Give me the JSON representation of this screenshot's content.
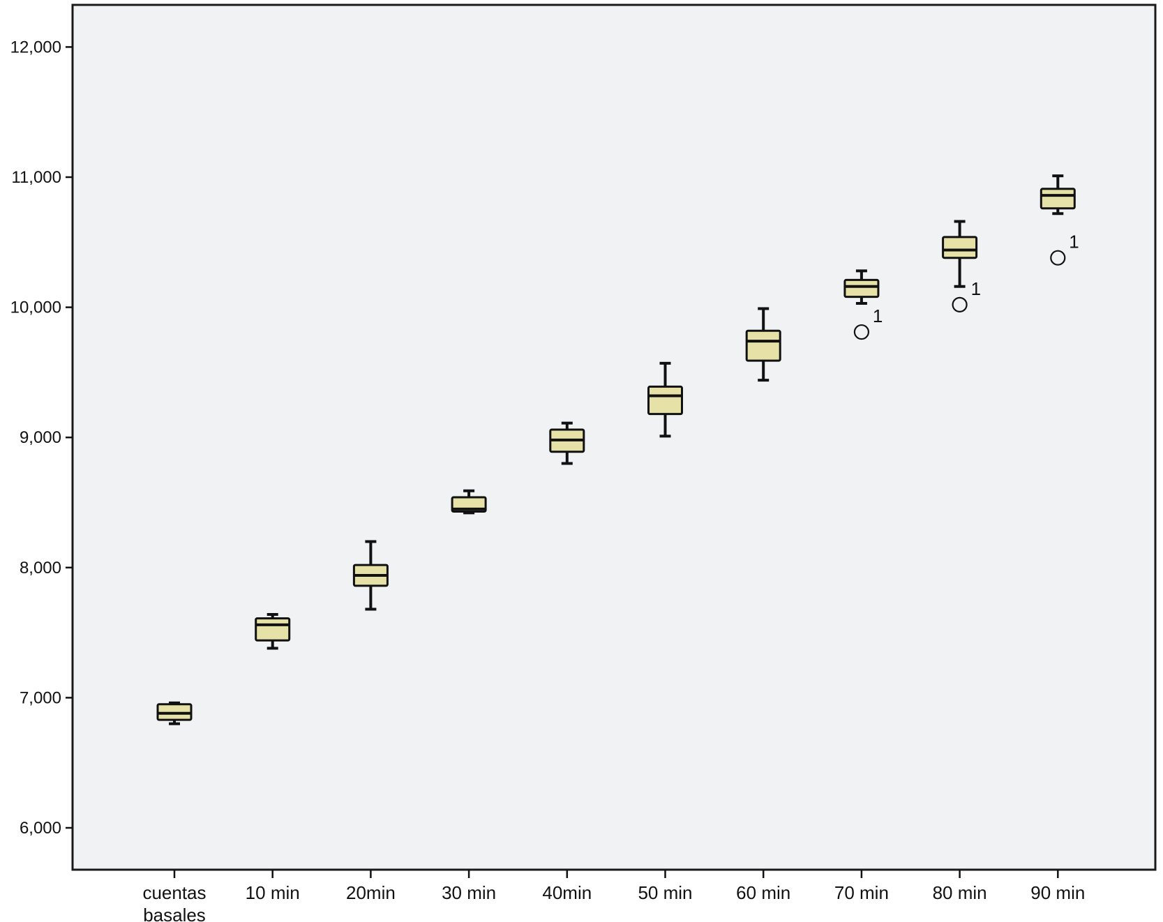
{
  "chart_data": {
    "type": "box",
    "title": "",
    "xlabel": "",
    "ylabel": "",
    "ylim": [
      5700,
      12350
    ],
    "yticks": [
      {
        "value": 6000,
        "label": "6,000"
      },
      {
        "value": 7000,
        "label": "7,000"
      },
      {
        "value": 8000,
        "label": "8,000"
      },
      {
        "value": 9000,
        "label": "9,000"
      },
      {
        "value": 10000,
        "label": "10,000"
      },
      {
        "value": 11000,
        "label": "11,000"
      },
      {
        "value": 12000,
        "label": "12,000"
      }
    ],
    "grid": false,
    "colors": {
      "box_fill": "#e6e1a6",
      "plot_bg": "#f1f2f4",
      "stroke": "#111111"
    },
    "categories": [
      {
        "label": [
          "cuentas",
          "basales"
        ],
        "whisker_low": 6800,
        "q1": 6830,
        "median": 6880,
        "q3": 6950,
        "whisker_high": 6960,
        "outliers": []
      },
      {
        "label": [
          "10 min"
        ],
        "whisker_low": 7380,
        "q1": 7440,
        "median": 7560,
        "q3": 7610,
        "whisker_high": 7640,
        "outliers": []
      },
      {
        "label": [
          "20min"
        ],
        "whisker_low": 7680,
        "q1": 7860,
        "median": 7940,
        "q3": 8020,
        "whisker_high": 8200,
        "outliers": []
      },
      {
        "label": [
          "30 min"
        ],
        "whisker_low": 8420,
        "q1": 8430,
        "median": 8450,
        "q3": 8540,
        "whisker_high": 8590,
        "outliers": []
      },
      {
        "label": [
          "40min"
        ],
        "whisker_low": 8800,
        "q1": 8890,
        "median": 8980,
        "q3": 9060,
        "whisker_high": 9110,
        "outliers": []
      },
      {
        "label": [
          "50 min"
        ],
        "whisker_low": 9010,
        "q1": 9180,
        "median": 9320,
        "q3": 9390,
        "whisker_high": 9570,
        "outliers": []
      },
      {
        "label": [
          "60 min"
        ],
        "whisker_low": 9440,
        "q1": 9590,
        "median": 9740,
        "q3": 9820,
        "whisker_high": 9990,
        "outliers": []
      },
      {
        "label": [
          "70 min"
        ],
        "whisker_low": 10030,
        "q1": 10080,
        "median": 10160,
        "q3": 10210,
        "whisker_high": 10280,
        "outliers": [
          {
            "value": 9810,
            "label": "1"
          }
        ]
      },
      {
        "label": [
          "80 min"
        ],
        "whisker_low": 10160,
        "q1": 10380,
        "median": 10440,
        "q3": 10540,
        "whisker_high": 10660,
        "outliers": [
          {
            "value": 10020,
            "label": "1"
          }
        ]
      },
      {
        "label": [
          "90 min"
        ],
        "whisker_low": 10720,
        "q1": 10760,
        "median": 10860,
        "q3": 10910,
        "whisker_high": 11010,
        "outliers": [
          {
            "value": 10380,
            "label": "1"
          }
        ]
      }
    ]
  }
}
